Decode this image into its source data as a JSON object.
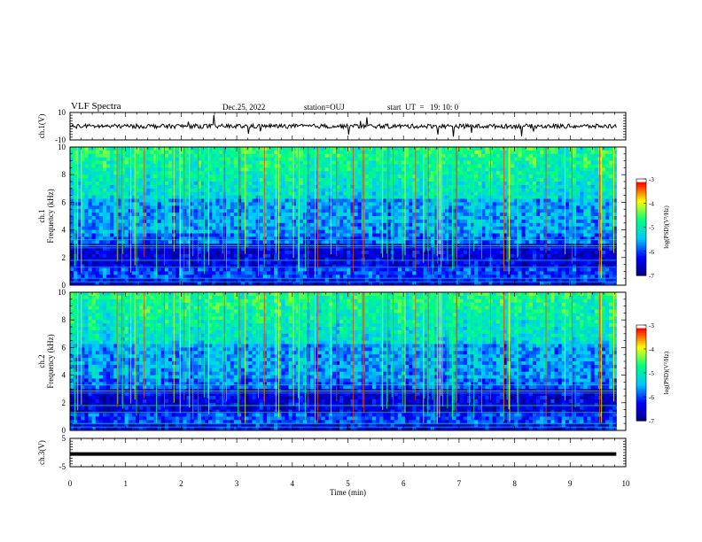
{
  "header": {
    "title": "VLF Spectra",
    "date": "Dec.25, 2022",
    "station": "station=OUJ",
    "start": "start  UT  =   19: 10: 0"
  },
  "colors": {
    "spectrogram_scale": [
      "#000080",
      "#0000ff",
      "#00c8ff",
      "#00ff80",
      "#ffff00",
      "#ff0000",
      "#ffffff"
    ],
    "trace": "#000000"
  },
  "chart_data": [
    {
      "type": "line",
      "name": "waveform-ch1",
      "ylabel": "ch.1(V)",
      "ylim": [
        -10,
        10
      ],
      "y_tick_labels": [
        "10",
        "-10"
      ],
      "xlim": [
        0,
        10
      ],
      "description_of_data": "noise trace centered near 0 V",
      "x": [
        0,
        9.83
      ],
      "y": [
        0,
        0
      ]
    },
    {
      "type": "heatmap",
      "name": "spectrogram-ch1",
      "ylabel": "ch.1\nFrequency (kHz)",
      "ylim": [
        0,
        10
      ],
      "y_tick_labels": [
        "0",
        "2",
        "4",
        "6",
        "8",
        "10"
      ],
      "xlim": [
        0,
        10
      ],
      "x_data_extent": [
        0,
        9.83
      ],
      "colorbar": {
        "label": "log(PSD)(V²/Hz)",
        "range": [
          -7,
          -3
        ],
        "tick_labels": [
          "-3",
          "-4",
          "-5",
          "-6",
          "-7"
        ]
      }
    },
    {
      "type": "heatmap",
      "name": "spectrogram-ch2",
      "ylabel": "ch.2\nFrequency (kHz)",
      "ylim": [
        0,
        10
      ],
      "y_tick_labels": [
        "0",
        "2",
        "4",
        "6",
        "8",
        "10"
      ],
      "xlim": [
        0,
        10
      ],
      "x_data_extent": [
        0,
        9.83
      ],
      "colorbar": {
        "label": "log(PSD)(V²/Hz)",
        "range": [
          -7,
          -3
        ],
        "tick_labels": [
          "-3",
          "-4",
          "-5",
          "-6",
          "-7"
        ]
      }
    },
    {
      "type": "line",
      "name": "waveform-ch3",
      "ylabel": "ch.3(V)",
      "ylim": [
        -5,
        5
      ],
      "y_tick_labels": [
        "5",
        "-5"
      ],
      "xlim": [
        0,
        10
      ],
      "x": [
        0,
        9.83
      ],
      "y": [
        -0.5,
        -0.5
      ]
    }
  ],
  "x_axis": {
    "label": "Time (min)",
    "tick_labels": [
      "0",
      "1",
      "2",
      "3",
      "4",
      "5",
      "6",
      "7",
      "8",
      "9",
      "10"
    ]
  }
}
